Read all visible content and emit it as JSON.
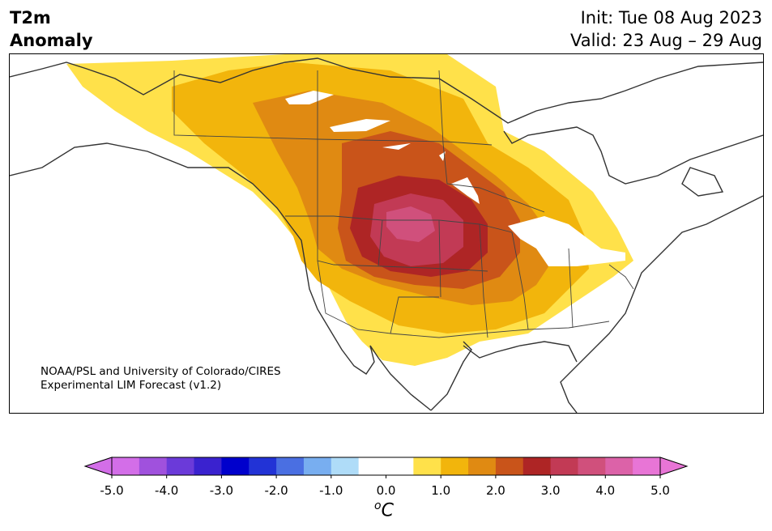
{
  "title": {
    "left_line1": "T2m",
    "left_line2": "Anomaly",
    "right_line1": "Init: Tue 08 Aug 2023",
    "right_line2": "Valid: 23 Aug – 29 Aug"
  },
  "credit": {
    "line1": "NOAA/PSL and University of Colorado/CIRES",
    "line2": "Experimental LIM Forecast (v1.2)"
  },
  "colorbar": {
    "unit_base": "C",
    "unit_sup": "o",
    "ticks": [
      "-5.0",
      "-4.0",
      "-3.0",
      "-2.0",
      "-1.0",
      "0.0",
      "1.0",
      "2.0",
      "3.0",
      "4.0",
      "5.0"
    ],
    "colors": [
      "#d36ee8",
      "#a051dd",
      "#6b3ad9",
      "#3a22cf",
      "#0000cc",
      "#2233d6",
      "#4a6fe2",
      "#78aef0",
      "#afdcf8",
      "#ffffff",
      "#ffffff",
      "#ffe14a",
      "#f2b50c",
      "#e08a12",
      "#c9541a",
      "#ae2525",
      "#c23a55",
      "#d0507c",
      "#dc62a8",
      "#e875d6"
    ]
  },
  "map_colors": {
    "land": "#ffffff",
    "anom_0_5": "#ffe14a",
    "anom_1_0": "#f2b50c",
    "anom_1_5": "#e08a12",
    "anom_2_0": "#c9541a",
    "anom_2_5": "#ae2525",
    "anom_3_0": "#c23a55",
    "anom_3_5": "#d0507c",
    "coast": "#333333"
  }
}
